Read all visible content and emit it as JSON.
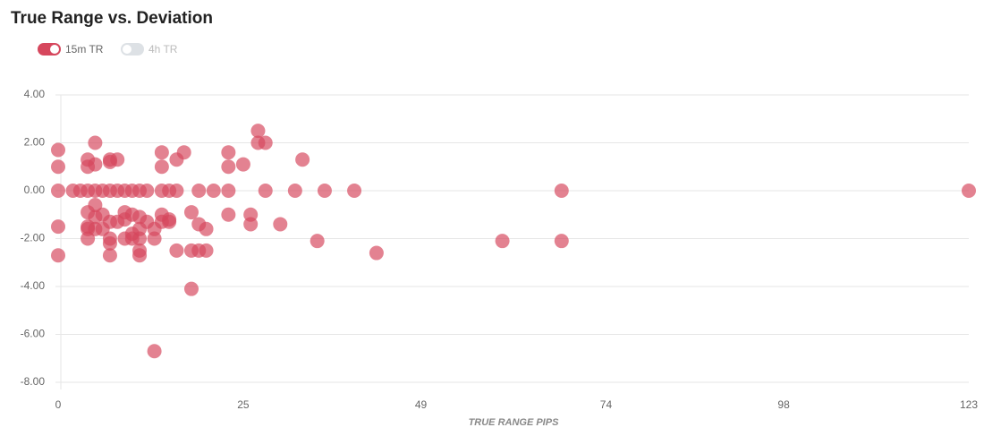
{
  "chart_data": {
    "type": "scatter",
    "title": "True Range vs. Deviation",
    "x_label": "TRUE RANGE PIPS",
    "xlim": [
      0,
      123
    ],
    "xticks": [
      0,
      25,
      49,
      74,
      98,
      123
    ],
    "ylim": [
      -8,
      4
    ],
    "yticks": [
      {
        "value": 4,
        "label": "4.00"
      },
      {
        "value": 2,
        "label": "2.00"
      },
      {
        "value": 0,
        "label": "0.00"
      },
      {
        "value": -2,
        "label": "-2.00"
      },
      {
        "value": -4,
        "label": "-4.00"
      },
      {
        "value": -6,
        "label": "-6.00"
      },
      {
        "value": -8,
        "label": "-8.00"
      }
    ],
    "grid": true,
    "series": [
      {
        "name": "15m TR",
        "color": "#d6475d",
        "visible": true,
        "x": [
          0,
          0,
          0,
          0,
          0,
          2,
          3,
          4,
          4,
          4,
          4,
          4,
          4,
          4,
          5,
          5,
          5,
          5,
          5,
          5,
          6,
          6,
          6,
          7,
          7,
          7,
          7,
          7,
          7,
          7,
          8,
          8,
          8,
          9,
          9,
          9,
          9,
          10,
          10,
          10,
          10,
          11,
          11,
          11,
          11,
          11,
          11,
          12,
          12,
          13,
          13,
          13,
          14,
          14,
          14,
          14,
          14,
          15,
          15,
          15,
          16,
          16,
          16,
          17,
          18,
          18,
          18,
          19,
          19,
          19,
          20,
          20,
          21,
          23,
          23,
          23,
          23,
          25,
          26,
          26,
          27,
          27,
          28,
          28,
          30,
          32,
          33,
          35,
          36,
          40,
          43,
          60,
          68,
          68,
          123
        ],
        "values": [
          1.7,
          1.0,
          0,
          -1.5,
          -2.7,
          0,
          0,
          1.3,
          1.0,
          0,
          -0.9,
          -1.5,
          -1.6,
          -2.0,
          2.0,
          1.1,
          0,
          -0.6,
          -1.1,
          -1.6,
          0,
          -1.0,
          -1.6,
          1.3,
          1.2,
          0,
          -1.3,
          -2.0,
          -2.2,
          -2.7,
          1.3,
          0,
          -1.3,
          0,
          -0.9,
          -1.2,
          -2.0,
          0,
          -1.0,
          -1.8,
          -2.0,
          0,
          -1.1,
          -1.6,
          -2.0,
          -2.5,
          -2.7,
          0,
          -1.3,
          -1.6,
          -2.0,
          -6.7,
          1.6,
          1.0,
          0,
          -1.0,
          -1.3,
          0,
          -1.3,
          -1.2,
          1.3,
          0,
          -2.5,
          1.6,
          -0.9,
          -2.5,
          -4.1,
          0,
          -1.4,
          -2.5,
          -1.6,
          -2.5,
          0,
          1.6,
          1.0,
          0,
          -1.0,
          1.1,
          -1.0,
          -1.4,
          2.5,
          2.0,
          2.0,
          0,
          -1.4,
          0,
          1.3,
          -2.1,
          0,
          0,
          -2.6,
          -2.1,
          0,
          -2.1,
          0
        ]
      },
      {
        "name": "4h TR",
        "color": "#dde1e5",
        "visible": false
      }
    ]
  }
}
